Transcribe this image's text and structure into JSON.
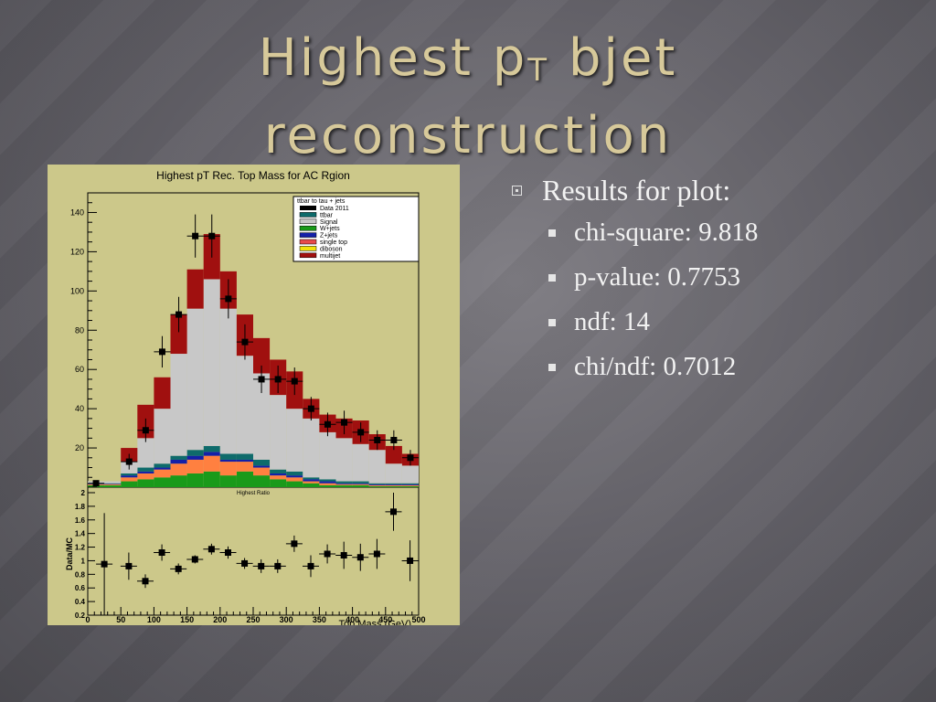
{
  "slide": {
    "title_main": "Highest p",
    "title_sub": "T",
    "title_rest": " bjet",
    "title_line2": "reconstruction"
  },
  "bullets": {
    "heading": "Results for plot:",
    "items": [
      "chi-square: 9.818",
      "p-value: 0.7753",
      "ndf: 14",
      "chi/ndf: 0.7012"
    ]
  },
  "colors": {
    "slide_background": "#5f5e64",
    "title_color": "#d7c99a",
    "plot_background": "#ccc88a",
    "multijet": "#a0100f",
    "diboson": "#f2e20a",
    "single_top": "#e84b4b",
    "zjets": "#1420a8",
    "wjets": "#1a9a1a",
    "signal": "#ff8040",
    "ttbar": "#0e6b6b",
    "tt_lep": "#c8c8c8"
  },
  "chart_data": [
    {
      "type": "bar",
      "title": "Highest pT Rec. Top Mass for AC Rgion",
      "xlabel": "Top Mass (GeV)",
      "ylabel": "",
      "xlim": [
        0,
        500
      ],
      "ylim": [
        0,
        150
      ],
      "bin_edges": [
        0,
        25,
        50,
        75,
        100,
        125,
        150,
        175,
        200,
        225,
        250,
        275,
        300,
        325,
        350,
        375,
        400,
        425,
        450,
        475,
        500
      ],
      "xticks": [
        "0",
        "50",
        "100",
        "150",
        "200",
        "250",
        "300",
        "350",
        "400",
        "450",
        "500"
      ],
      "yticks": [
        "20",
        "40",
        "60",
        "80",
        "100",
        "120",
        "140"
      ],
      "legend": {
        "title": "ttbar to tau + jets",
        "position": "top-right",
        "entries": [
          "Data 2011",
          "ttbar",
          "Signal",
          "W+jets",
          "Z+jets",
          "single top",
          "diboson",
          "multijet"
        ]
      },
      "series": [
        {
          "name": "W+jets",
          "values": [
            1,
            1,
            3,
            4,
            5,
            6,
            7,
            8,
            6,
            8,
            6,
            4,
            3,
            2,
            1,
            1,
            1,
            0.5,
            0.5,
            0.5
          ]
        },
        {
          "name": "Signal",
          "values": [
            0.5,
            0.5,
            2,
            3,
            4,
            6,
            7,
            8,
            7,
            5,
            4,
            2,
            2,
            1,
            1,
            0.5,
            0.5,
            0.5,
            0.5,
            0.5
          ]
        },
        {
          "name": "Z+jets",
          "values": [
            0.3,
            0.3,
            1,
            1,
            1,
            2,
            2,
            2,
            1,
            1,
            1,
            1,
            1,
            1,
            1,
            0.5,
            0.5,
            0.5,
            0.5,
            0.5
          ]
        },
        {
          "name": "ttbar",
          "values": [
            0.2,
            0.2,
            1,
            2,
            2,
            2,
            3,
            3,
            3,
            3,
            3,
            2,
            2,
            1,
            1,
            1,
            1,
            0.5,
            0.5,
            0.5
          ]
        },
        {
          "name": "single top",
          "values": [
            0,
            0,
            0,
            0,
            0,
            0,
            0,
            0,
            0,
            0,
            0,
            0,
            0,
            0,
            0,
            0,
            0,
            0,
            0,
            0
          ]
        },
        {
          "name": "diboson",
          "values": [
            0,
            0,
            0,
            0,
            0,
            0,
            0,
            0,
            0,
            0,
            0,
            0,
            0,
            0,
            0,
            0,
            0,
            0,
            0,
            0
          ]
        },
        {
          "name": "tt_lep",
          "values": [
            1,
            1,
            6,
            15,
            28,
            52,
            72,
            85,
            74,
            50,
            44,
            38,
            32,
            30,
            24,
            22,
            19,
            17,
            10,
            9
          ]
        },
        {
          "name": "multijet",
          "values": [
            0,
            0,
            7,
            17,
            16,
            20,
            20,
            23,
            19,
            21,
            18,
            18,
            19,
            10,
            9,
            10,
            12,
            8,
            9,
            6
          ]
        }
      ],
      "data_points": {
        "name": "Data 2011",
        "values": [
          2,
          0,
          13,
          29,
          69,
          88,
          128,
          128,
          96,
          74,
          55,
          55,
          54,
          40,
          32,
          33,
          28,
          24,
          24,
          15
        ],
        "errors": [
          1.5,
          0,
          4,
          6,
          8,
          9,
          11,
          11,
          10,
          9,
          7,
          7,
          7,
          6,
          6,
          6,
          5,
          5,
          5,
          4
        ]
      }
    },
    {
      "type": "scatter",
      "title": "Highest Ratio",
      "xlabel": "Top Mass (GeV)",
      "ylabel": "Data/MC",
      "xlim": [
        0,
        500
      ],
      "ylim": [
        0.2,
        2.0
      ],
      "yticks": [
        "0.2",
        "0.4",
        "0.6",
        "0.8",
        "1",
        "1.2",
        "1.4",
        "1.6",
        "1.8",
        "2"
      ],
      "x": [
        25,
        62,
        87,
        112,
        137,
        162,
        187,
        212,
        237,
        262,
        287,
        312,
        337,
        362,
        387,
        412,
        437,
        462,
        487
      ],
      "values": [
        0.95,
        0.92,
        0.7,
        1.12,
        0.88,
        1.02,
        1.17,
        1.12,
        0.96,
        0.92,
        0.92,
        1.25,
        0.92,
        1.1,
        1.08,
        1.05,
        1.1,
        1.72,
        1.0
      ],
      "errors": [
        0.75,
        0.2,
        0.1,
        0.12,
        0.08,
        0.06,
        0.08,
        0.09,
        0.08,
        0.1,
        0.1,
        0.12,
        0.16,
        0.14,
        0.2,
        0.2,
        0.22,
        0.28,
        0.3
      ]
    }
  ]
}
